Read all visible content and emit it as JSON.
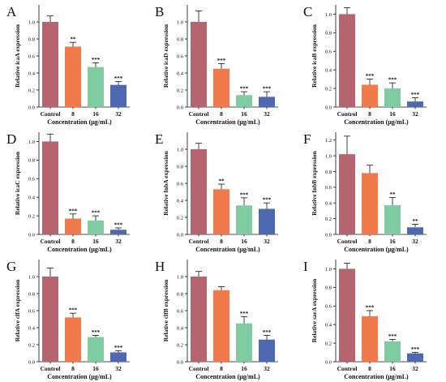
{
  "colors": {
    "Control": "#b56470",
    "8": "#f07a4b",
    "16": "#7fcca2",
    "32": "#4e68b2"
  },
  "chart_data": [
    {
      "type": "bar",
      "panel": "A",
      "ylabel": "Relative icaA expression",
      "xlabel": "Concentration (μg/mL)",
      "categories": [
        "Control",
        "8",
        "16",
        "32"
      ],
      "values": [
        1.0,
        0.71,
        0.47,
        0.26
      ],
      "errors": [
        0.07,
        0.05,
        0.05,
        0.04
      ],
      "significance": [
        "",
        "**",
        "***",
        "***"
      ],
      "ylim": [
        0,
        1.2
      ],
      "ticks": [
        "0.0",
        "0.2",
        "0.4",
        "0.6",
        "0.8",
        "1.0"
      ]
    },
    {
      "type": "bar",
      "panel": "B",
      "ylabel": "Relative icaD expression",
      "xlabel": "Concentration (μg/mL)",
      "categories": [
        "Control",
        "8",
        "16",
        "32"
      ],
      "values": [
        1.0,
        0.45,
        0.14,
        0.12
      ],
      "errors": [
        0.13,
        0.06,
        0.04,
        0.06
      ],
      "significance": [
        "",
        "***",
        "***",
        "***"
      ],
      "ylim": [
        0,
        1.2
      ],
      "ticks": [
        "0.0",
        "0.2",
        "0.4",
        "0.6",
        "0.8",
        "1.0"
      ]
    },
    {
      "type": "bar",
      "panel": "C",
      "ylabel": "Relative icaB expression",
      "xlabel": "Concentration (μg/mL)",
      "categories": [
        "Control",
        "8",
        "16",
        "32"
      ],
      "values": [
        1.0,
        0.24,
        0.2,
        0.06
      ],
      "errors": [
        0.07,
        0.06,
        0.06,
        0.04
      ],
      "significance": [
        "",
        "***",
        "***",
        "***"
      ],
      "ylim": [
        0,
        1.1
      ],
      "ticks": [
        "0.0",
        "0.2",
        "0.4",
        "0.6",
        "0.8",
        "1.0"
      ]
    },
    {
      "type": "bar",
      "panel": "D",
      "ylabel": "Relative icaC expression",
      "xlabel": "Concentration (μg/mL)",
      "categories": [
        "Control",
        "8",
        "16",
        "32"
      ],
      "values": [
        1.0,
        0.17,
        0.15,
        0.05
      ],
      "errors": [
        0.08,
        0.05,
        0.05,
        0.02
      ],
      "significance": [
        "",
        "***",
        "***",
        "***"
      ],
      "ylim": [
        0,
        1.1
      ],
      "ticks": [
        "0.0",
        "0.2",
        "0.4",
        "0.6",
        "0.8",
        "1.0"
      ]
    },
    {
      "type": "bar",
      "panel": "E",
      "ylabel": "Relative fnbA expression",
      "xlabel": "Concentration (μg/mL)",
      "categories": [
        "Control",
        "8",
        "16",
        "32"
      ],
      "values": [
        1.0,
        0.53,
        0.34,
        0.3
      ],
      "errors": [
        0.07,
        0.06,
        0.09,
        0.07
      ],
      "significance": [
        "",
        "**",
        "***",
        "***"
      ],
      "ylim": [
        0,
        1.2
      ],
      "ticks": [
        "0.0",
        "0.2",
        "0.4",
        "0.6",
        "0.8",
        "1.0"
      ]
    },
    {
      "type": "bar",
      "panel": "F",
      "ylabel": "Relative fnbB expression",
      "xlabel": "Concentration (μg/mL)",
      "categories": [
        "Control",
        "8",
        "16",
        "32"
      ],
      "values": [
        1.02,
        0.78,
        0.37,
        0.09
      ],
      "errors": [
        0.23,
        0.1,
        0.1,
        0.04
      ],
      "significance": [
        "",
        "",
        "**",
        "**"
      ],
      "ylim": [
        0,
        1.3
      ],
      "ticks": [
        "0.0",
        "0.2",
        "0.4",
        "0.6",
        "0.8",
        "1.0",
        "1.2"
      ]
    },
    {
      "type": "bar",
      "panel": "G",
      "ylabel": "Relative clfA expression",
      "xlabel": "Concentration (μg/mL)",
      "categories": [
        "Control",
        "8",
        "16",
        "32"
      ],
      "values": [
        1.0,
        0.52,
        0.29,
        0.11
      ],
      "errors": [
        0.1,
        0.05,
        0.02,
        0.02
      ],
      "significance": [
        "",
        "***",
        "***",
        "***"
      ],
      "ylim": [
        0,
        1.2
      ],
      "ticks": [
        "0.0",
        "0.2",
        "0.4",
        "0.6",
        "0.8",
        "1.0"
      ]
    },
    {
      "type": "bar",
      "panel": "H",
      "ylabel": "Relative clfB expression",
      "xlabel": "Concentration (μg/mL)",
      "categories": [
        "Control",
        "8",
        "16",
        "32"
      ],
      "values": [
        1.0,
        0.84,
        0.45,
        0.26
      ],
      "errors": [
        0.06,
        0.04,
        0.08,
        0.05
      ],
      "significance": [
        "",
        "",
        "***",
        "***"
      ],
      "ylim": [
        0,
        1.2
      ],
      "ticks": [
        "0.0",
        "0.2",
        "0.4",
        "0.6",
        "0.8",
        "1.0"
      ]
    },
    {
      "type": "bar",
      "panel": "I",
      "ylabel": "Relative sarA expression",
      "xlabel": "Concentration (μg/mL)",
      "categories": [
        "Control",
        "8",
        "16",
        "32"
      ],
      "values": [
        1.0,
        0.49,
        0.22,
        0.09
      ],
      "errors": [
        0.06,
        0.06,
        0.02,
        0.01
      ],
      "significance": [
        "",
        "***",
        "***",
        "***"
      ],
      "ylim": [
        0,
        1.1
      ],
      "ticks": [
        "0.0",
        "0.2",
        "0.4",
        "0.6",
        "0.8",
        "1.0"
      ]
    }
  ]
}
